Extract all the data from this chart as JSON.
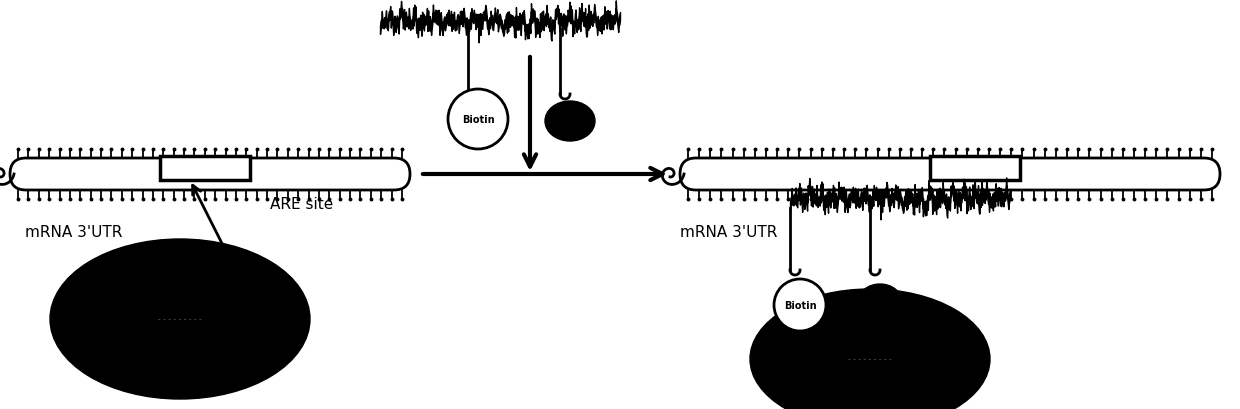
{
  "bg_color": "#ffffff",
  "label_left": "mRNA 3'UTR",
  "label_right": "mRNA 3'UTR",
  "are_label": "ARE site",
  "biotin_label": "Biotin"
}
